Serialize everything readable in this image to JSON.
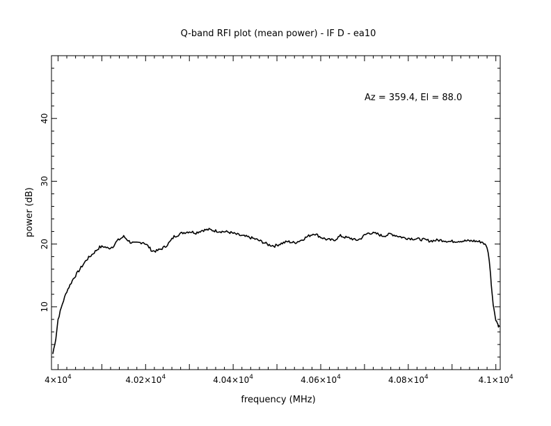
{
  "chart_data": {
    "type": "line",
    "title": "Q-band RFI plot (mean power) - IF D - ea10",
    "xlabel": "frequency (MHz)",
    "ylabel": "power (dB)",
    "annotation": "Az = 359.4, El = 88.0",
    "xlim": [
      39985,
      41010
    ],
    "ylim": [
      0,
      50
    ],
    "x_ticks": [
      {
        "value": 40000,
        "mantissa": "4",
        "exponent": "4",
        "prefix": ""
      },
      {
        "value": 40200,
        "mantissa": "4.02",
        "exponent": "4",
        "prefix": ""
      },
      {
        "value": 40400,
        "mantissa": "4.04",
        "exponent": "4",
        "prefix": ""
      },
      {
        "value": 40600,
        "mantissa": "4.06",
        "exponent": "4",
        "prefix": ""
      },
      {
        "value": 40800,
        "mantissa": "4.08",
        "exponent": "4",
        "prefix": ""
      },
      {
        "value": 41000,
        "mantissa": "4.1",
        "exponent": "4",
        "prefix": ""
      }
    ],
    "x_tick_base": "10",
    "y_ticks": [
      10,
      20,
      30,
      40
    ],
    "grid": false,
    "line_color": "#000000",
    "series": [
      {
        "x": [
          39988,
          39995,
          40000,
          40010,
          40020,
          40035,
          40050,
          40065,
          40080,
          40095,
          40105,
          40115,
          40125,
          40135,
          40150,
          40165,
          40175,
          40185,
          40195,
          40205,
          40215,
          40225,
          40235,
          40245,
          40255,
          40265,
          40275,
          40285,
          40300,
          40315,
          40330,
          40345,
          40360,
          40375,
          40390,
          40405,
          40420,
          40435,
          40450,
          40465,
          40480,
          40495,
          40510,
          40525,
          40540,
          40555,
          40570,
          40585,
          40600,
          40615,
          40630,
          40645,
          40660,
          40670,
          40680,
          40690,
          40700,
          40710,
          40720,
          40730,
          40740,
          40750,
          40760,
          40775,
          40790,
          40805,
          40820,
          40835,
          40850,
          40865,
          40880,
          40895,
          40920,
          40950,
          40970,
          40980,
          40985,
          40988,
          40991,
          40994,
          40997,
          41000,
          41003,
          41006,
          41008
        ],
        "y": [
          2.5,
          5.0,
          8.0,
          10.5,
          12.5,
          14.5,
          16.0,
          17.5,
          18.5,
          19.5,
          19.6,
          19.3,
          19.6,
          20.5,
          21.2,
          20.3,
          20.1,
          20.2,
          20.3,
          19.7,
          18.9,
          18.9,
          19.2,
          19.6,
          20.3,
          21.2,
          21.5,
          21.8,
          22.0,
          21.8,
          22.2,
          22.3,
          22.1,
          22.0,
          21.9,
          21.6,
          21.3,
          21.1,
          20.8,
          20.4,
          19.9,
          19.7,
          20.1,
          20.4,
          20.2,
          20.6,
          21.2,
          21.7,
          21.1,
          20.7,
          20.6,
          21.3,
          21.0,
          20.9,
          20.6,
          20.8,
          21.4,
          21.8,
          21.7,
          21.6,
          21.3,
          21.4,
          21.6,
          21.3,
          21.0,
          20.9,
          20.8,
          20.7,
          20.5,
          20.6,
          20.6,
          20.4,
          20.5,
          20.5,
          20.3,
          19.5,
          17.5,
          15.0,
          12.5,
          10.5,
          9.0,
          8.0,
          7.5,
          7.0,
          6.8
        ]
      }
    ]
  }
}
